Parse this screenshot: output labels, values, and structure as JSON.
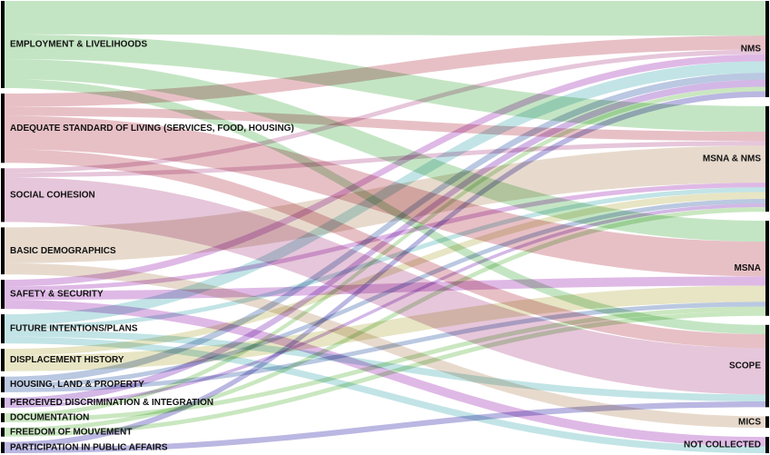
{
  "chart_data": {
    "type": "sankey",
    "sources": [
      "EMPLOYMENT & LIVELIHOODS",
      "ADEQUATE STANDARD OF LIVING (SERVICES, FOOD, HOUSING)",
      "SOCIAL COHESION",
      "BASIC DEMOGRAPHICS",
      "SAFETY & SECURITY",
      "FUTURE INTENTIONS/PLANS",
      "DISPLACEMENT HISTORY",
      "HOUSING, LAND & PROPERTY",
      "PERCEIVED DISCRIMINATION & INTEGRATION",
      "DOCUMENTATION",
      "FREEDOM OF MOUVEMENT",
      "PARTICIPATION IN PUBLIC AFFAIRS"
    ],
    "targets": [
      "NMS",
      "MSNA & NMS",
      "MSNA",
      "SCOPE",
      "MICS",
      "NOT COLLECTED"
    ],
    "source_colors": [
      "#9fd5a0",
      "#d99aa3",
      "#d7a3c4",
      "#d9c3ae",
      "#cc8ed6",
      "#9dd3d6",
      "#d9d5a0",
      "#8fa6cf",
      "#b88ad6",
      "#aad99a",
      "#a8d99a",
      "#8f8ad0"
    ],
    "flows": [
      {
        "source": "EMPLOYMENT & LIVELIHOODS",
        "target": "NMS",
        "value": 30
      },
      {
        "source": "EMPLOYMENT & LIVELIHOODS",
        "target": "MSNA & NMS",
        "value": 22
      },
      {
        "source": "EMPLOYMENT & LIVELIHOODS",
        "target": "MSNA",
        "value": 18
      },
      {
        "source": "EMPLOYMENT & LIVELIHOODS",
        "target": "SCOPE",
        "value": 8
      },
      {
        "source": "ADEQUATE STANDARD OF LIVING (SERVICES, FOOD, HOUSING)",
        "target": "NMS",
        "value": 12
      },
      {
        "source": "ADEQUATE STANDARD OF LIVING (SERVICES, FOOD, HOUSING)",
        "target": "MSNA & NMS",
        "value": 8
      },
      {
        "source": "ADEQUATE STANDARD OF LIVING (SERVICES, FOOD, HOUSING)",
        "target": "MSNA",
        "value": 30
      },
      {
        "source": "ADEQUATE STANDARD OF LIVING (SERVICES, FOOD, HOUSING)",
        "target": "SCOPE",
        "value": 12
      },
      {
        "source": "SOCIAL COHESION",
        "target": "NMS",
        "value": 4
      },
      {
        "source": "SOCIAL COHESION",
        "target": "MSNA & NMS",
        "value": 4
      },
      {
        "source": "SOCIAL COHESION",
        "target": "SCOPE",
        "value": 40
      },
      {
        "source": "BASIC DEMOGRAPHICS",
        "target": "MSNA & NMS",
        "value": 32
      },
      {
        "source": "BASIC DEMOGRAPHICS",
        "target": "MICS",
        "value": 10
      },
      {
        "source": "SAFETY & SECURITY",
        "target": "NMS",
        "value": 6
      },
      {
        "source": "SAFETY & SECURITY",
        "target": "MSNA & NMS",
        "value": 4
      },
      {
        "source": "SAFETY & SECURITY",
        "target": "MSNA",
        "value": 8
      },
      {
        "source": "SAFETY & SECURITY",
        "target": "NOT COLLECTED",
        "value": 8
      },
      {
        "source": "FUTURE INTENTIONS/PLANS",
        "target": "NMS",
        "value": 10
      },
      {
        "source": "FUTURE INTENTIONS/PLANS",
        "target": "MSNA & NMS",
        "value": 4
      },
      {
        "source": "FUTURE INTENTIONS/PLANS",
        "target": "SCOPE",
        "value": 6
      },
      {
        "source": "FUTURE INTENTIONS/PLANS",
        "target": "NOT COLLECTED",
        "value": 6
      },
      {
        "source": "DISPLACEMENT HISTORY",
        "target": "MSNA & NMS",
        "value": 6
      },
      {
        "source": "DISPLACEMENT HISTORY",
        "target": "MSNA",
        "value": 14
      },
      {
        "source": "HOUSING, LAND & PROPERTY",
        "target": "NMS",
        "value": 6
      },
      {
        "source": "HOUSING, LAND & PROPERTY",
        "target": "MSNA & NMS",
        "value": 4
      },
      {
        "source": "HOUSING, LAND & PROPERTY",
        "target": "MSNA",
        "value": 4
      },
      {
        "source": "PERCEIVED DISCRIMINATION & INTEGRATION",
        "target": "NMS",
        "value": 6
      },
      {
        "source": "PERCEIVED DISCRIMINATION & INTEGRATION",
        "target": "MSNA & NMS",
        "value": 3
      },
      {
        "source": "DOCUMENTATION",
        "target": "NMS",
        "value": 4
      },
      {
        "source": "DOCUMENTATION",
        "target": "MSNA",
        "value": 4
      },
      {
        "source": "FREEDOM OF MOUVEMENT",
        "target": "MSNA & NMS",
        "value": 4
      },
      {
        "source": "FREEDOM OF MOUVEMENT",
        "target": "MSNA",
        "value": 4
      },
      {
        "source": "PARTICIPATION IN PUBLIC AFFAIRS",
        "target": "NMS",
        "value": 5
      },
      {
        "source": "PARTICIPATION IN PUBLIC AFFAIRS",
        "target": "SCOPE",
        "value": 5
      }
    ]
  }
}
